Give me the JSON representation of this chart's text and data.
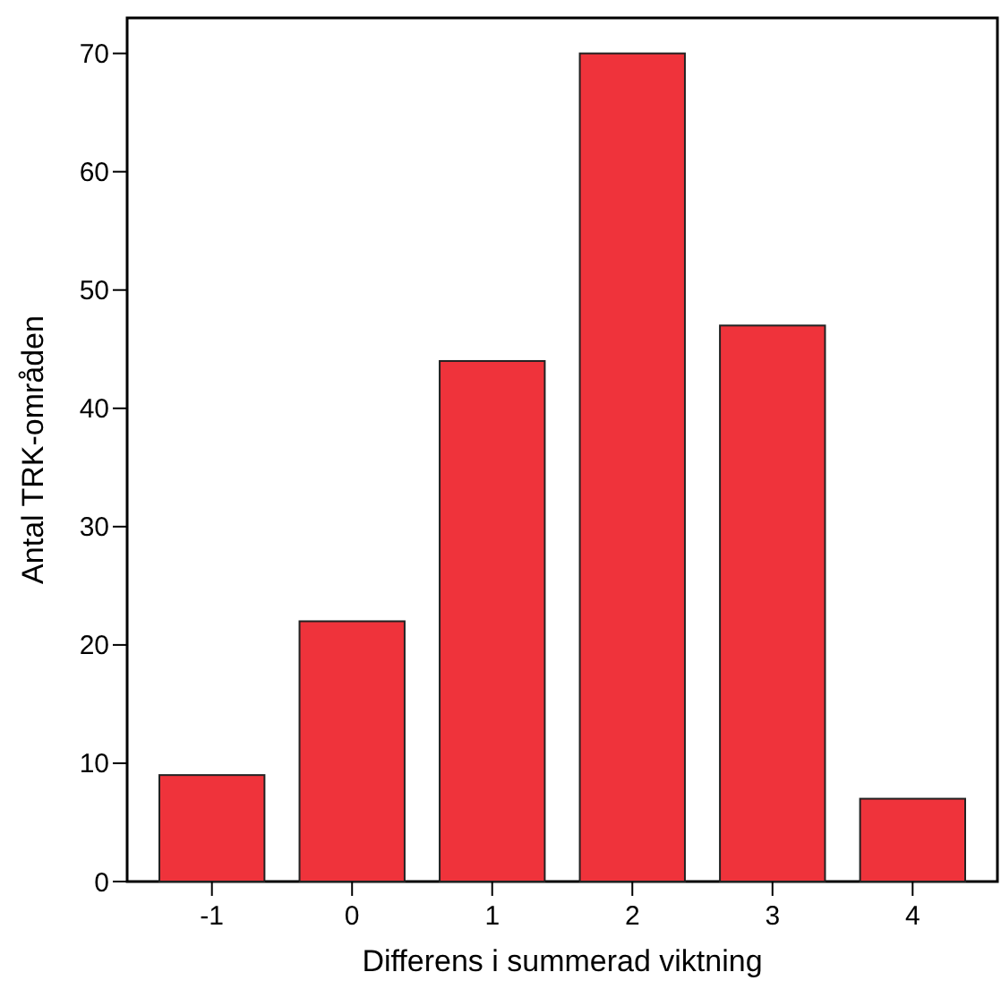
{
  "chart_data": {
    "type": "bar",
    "xlabel": "Differens i summerad viktning",
    "ylabel": "Antal TRK-områden",
    "categories": [
      "-1",
      "0",
      "1",
      "2",
      "3",
      "4"
    ],
    "values": [
      9,
      22,
      44,
      70,
      47,
      7
    ],
    "color": "#ef333b",
    "ylim": [
      0,
      73
    ],
    "yticks": [
      0,
      10,
      20,
      30,
      40,
      50,
      60,
      70
    ],
    "grid": false
  }
}
